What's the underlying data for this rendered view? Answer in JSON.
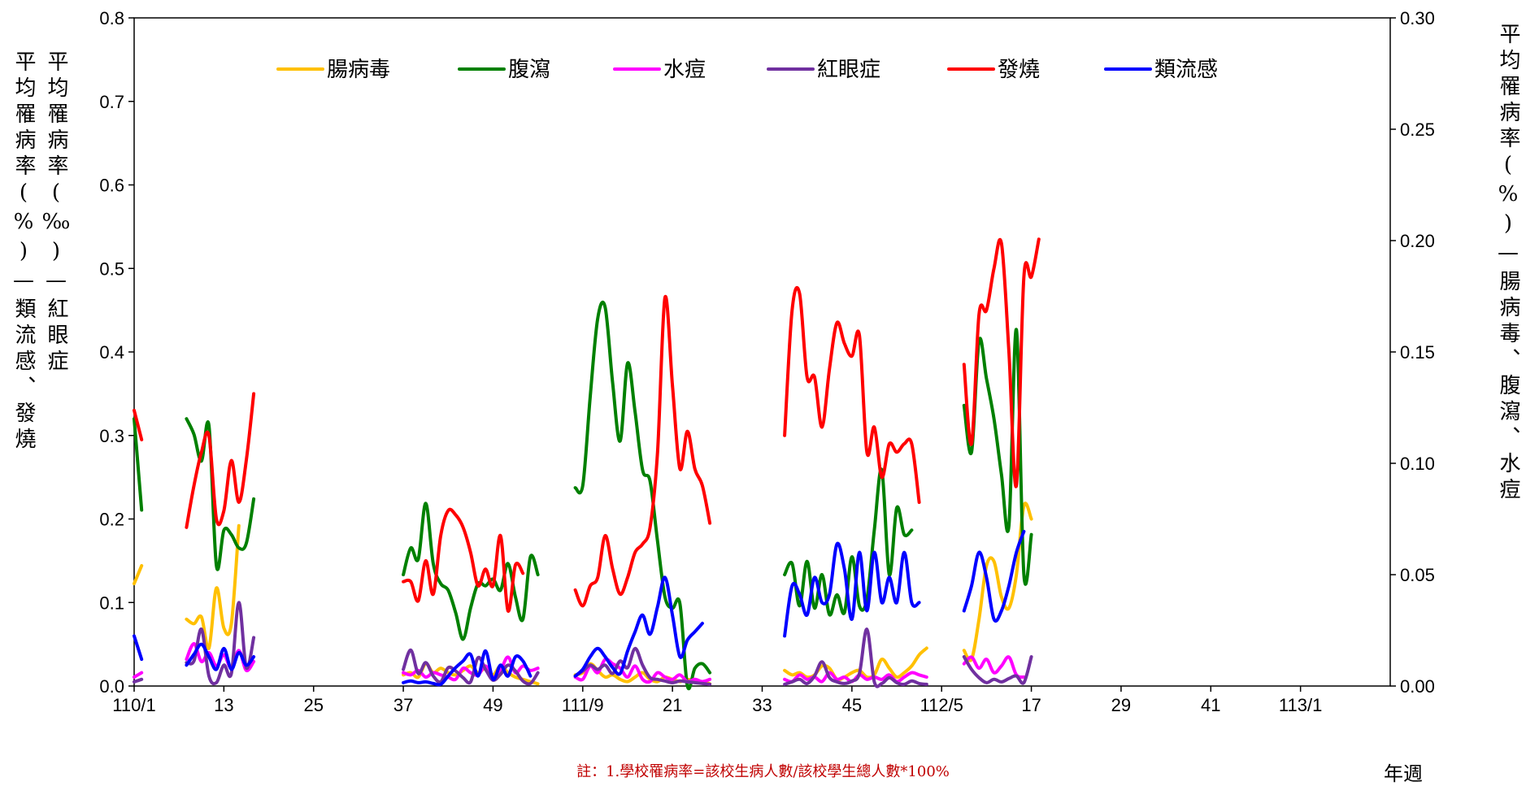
{
  "colors": {
    "腸病毒": "#ffc000",
    "腹瀉": "#008000",
    "水痘": "#ff00ff",
    "紅眼症": "#7030a0",
    "發燒": "#ff0000",
    "類流感": "#0000ff"
  },
  "chart_data": {
    "type": "line",
    "xlabel": "年週",
    "note": "註：1.學校罹病率=該校生病人數/該校學生總人數*100%",
    "left_ylabel_1": "平均罹病率(%)—類流感、發燒",
    "left_ylabel_2": "平均罹病率(‰)—紅眼症",
    "right_ylabel": "平均罹病率(%)—腸病毒、腹瀉、水痘",
    "left_axis": {
      "min": 0,
      "max": 0.8,
      "ticks": [
        "0.0",
        "0.1",
        "0.2",
        "0.3",
        "0.4",
        "0.5",
        "0.6",
        "0.7",
        "0.8"
      ]
    },
    "right_axis": {
      "min": 0,
      "max": 0.3,
      "ticks": [
        "0.00",
        "0.05",
        "0.10",
        "0.15",
        "0.20",
        "0.25",
        "0.30"
      ]
    },
    "x_axis": {
      "min": 0,
      "max": 168,
      "ticks": [
        {
          "pos": 0,
          "label": "110/1"
        },
        {
          "pos": 12,
          "label": "13"
        },
        {
          "pos": 24,
          "label": "25"
        },
        {
          "pos": 36,
          "label": "37"
        },
        {
          "pos": 48,
          "label": "49"
        },
        {
          "pos": 60,
          "label": "111/9"
        },
        {
          "pos": 72,
          "label": "21"
        },
        {
          "pos": 84,
          "label": "33"
        },
        {
          "pos": 96,
          "label": "45"
        },
        {
          "pos": 108,
          "label": "112/5"
        },
        {
          "pos": 120,
          "label": "17"
        },
        {
          "pos": 132,
          "label": "29"
        },
        {
          "pos": 144,
          "label": "41"
        },
        {
          "pos": 156,
          "label": "113/1"
        }
      ]
    },
    "legend": {
      "placement": "top",
      "order": [
        "腸病毒",
        "腹瀉",
        "水痘",
        "紅眼症",
        "發燒",
        "類流感"
      ]
    },
    "series": [
      {
        "name": "腸病毒",
        "axis": "right",
        "segments": [
          {
            "x0": 0,
            "values": [
              0.046,
              0.054
            ]
          },
          {
            "x0": 7,
            "values": [
              0.03,
              0.028,
              0.031,
              0.017,
              0.044,
              0.026,
              0.028,
              0.072
            ]
          },
          {
            "x0": 36,
            "values": [
              0.005,
              0.006,
              0.004,
              0.01,
              0.006,
              0.008,
              0.006,
              0.005,
              0.007,
              0.009,
              0.006,
              0.008,
              0.005,
              0.009,
              0.006,
              0.004,
              0.003,
              0.002,
              0.001
            ]
          },
          {
            "x0": 59,
            "values": [
              0.005,
              0.006,
              0.01,
              0.007,
              0.004,
              0.005,
              0.003,
              0.002,
              0.004,
              0.006,
              0.003,
              0.002,
              0.004,
              0.003,
              0.002,
              0.003,
              0.002,
              0.002,
              0.001
            ]
          },
          {
            "x0": 87,
            "values": [
              0.007,
              0.005,
              0.006,
              0.004,
              0.005,
              0.009,
              0.008,
              0.003,
              0.004,
              0.006,
              0.007,
              0.004,
              0.005,
              0.012,
              0.008,
              0.004,
              0.006,
              0.009,
              0.014,
              0.017
            ]
          },
          {
            "x0": 111,
            "values": [
              0.016,
              0.012,
              0.03,
              0.054,
              0.056,
              0.04,
              0.035,
              0.05,
              0.081,
              0.075
            ]
          }
        ]
      },
      {
        "name": "腹瀉",
        "axis": "right",
        "segments": [
          {
            "x0": 0,
            "values": [
              0.12,
              0.079
            ]
          },
          {
            "x0": 7,
            "values": [
              0.12,
              0.113,
              0.101,
              0.117,
              0.054,
              0.07,
              0.068,
              0.062,
              0.064,
              0.084
            ]
          },
          {
            "x0": 36,
            "values": [
              0.05,
              0.062,
              0.057,
              0.082,
              0.055,
              0.046,
              0.043,
              0.033,
              0.021,
              0.035,
              0.046,
              0.045,
              0.048,
              0.043,
              0.055,
              0.04,
              0.03,
              0.058,
              0.05
            ]
          },
          {
            "x0": 59,
            "values": [
              0.089,
              0.09,
              0.13,
              0.165,
              0.17,
              0.136,
              0.11,
              0.145,
              0.123,
              0.097,
              0.092,
              0.065,
              0.04,
              0.035,
              0.037,
              0,
              0.008,
              0.01,
              0.006
            ]
          },
          {
            "x0": 87,
            "values": [
              0.05,
              0.055,
              0.036,
              0.056,
              0.035,
              0.05,
              0.032,
              0.041,
              0.033,
              0.058,
              0.036,
              0.039,
              0.07,
              0.097,
              0.05,
              0.08,
              0.068,
              0.07
            ]
          },
          {
            "x0": 111,
            "values": [
              0.126,
              0.105,
              0.155,
              0.138,
              0.12,
              0.095,
              0.072,
              0.16,
              0.05,
              0.068
            ]
          }
        ]
      },
      {
        "name": "水痘",
        "axis": "right",
        "segments": [
          {
            "x0": 0,
            "values": [
              0.004,
              0.006
            ]
          },
          {
            "x0": 7,
            "values": [
              0.012,
              0.019,
              0.011,
              0.015,
              0.009,
              0.014,
              0.008,
              0.016,
              0.007,
              0.011
            ]
          },
          {
            "x0": 36,
            "values": [
              0.006,
              0.005,
              0.007,
              0.004,
              0.006,
              0.005,
              0.004,
              0.003,
              0.008,
              0.006,
              0.005,
              0.009,
              0.004,
              0.007,
              0.013,
              0.006,
              0.009,
              0.007,
              0.008
            ]
          },
          {
            "x0": 59,
            "values": [
              0.004,
              0.003,
              0.009,
              0.006,
              0.012,
              0.01,
              0.008,
              0.004,
              0.009,
              0.003,
              0.002,
              0.006,
              0.004,
              0.003,
              0.005,
              0.002,
              0.003,
              0.002,
              0.003
            ]
          },
          {
            "x0": 87,
            "values": [
              0.003,
              0.002,
              0.005,
              0.003,
              0.004,
              0.002,
              0.006,
              0.003,
              0.004,
              0.002,
              0.005,
              0.003,
              0.004,
              0.003,
              0.005,
              0.002,
              0.004,
              0.006,
              0.005,
              0.004
            ]
          },
          {
            "x0": 111,
            "values": [
              0.01,
              0.013,
              0.008,
              0.012,
              0.006,
              0.009,
              0.013,
              0.005,
              0.004
            ]
          }
        ]
      },
      {
        "name": "紅眼症",
        "axis": "left",
        "segments": [
          {
            "x0": 0,
            "values": [
              0.005,
              0.008
            ]
          },
          {
            "x0": 7,
            "values": [
              0.028,
              0.03,
              0.068,
              0.012,
              0.004,
              0.025,
              0.015,
              0.1,
              0.022,
              0.058
            ]
          },
          {
            "x0": 36,
            "values": [
              0.02,
              0.043,
              0.015,
              0.028,
              0.012,
              0.005,
              0.022,
              0.018,
              0.01,
              0.005,
              0.034,
              0.02,
              0.007,
              0.014,
              0.025,
              0.018,
              0.006,
              0.003,
              0.016
            ]
          },
          {
            "x0": 59,
            "values": [
              0.012,
              0.018,
              0.025,
              0.02,
              0.025,
              0.015,
              0.03,
              0.022,
              0.045,
              0.025,
              0.01,
              0.008,
              0.006,
              0.004,
              0.006,
              0.005,
              0.004,
              0.003,
              0.002
            ]
          },
          {
            "x0": 87,
            "values": [
              0.002,
              0.005,
              0.008,
              0.003,
              0.012,
              0.029,
              0.01,
              0.005,
              0.003,
              0.006,
              0.015,
              0.068,
              0.005,
              0.003,
              0.01,
              0.004,
              0.002,
              0.006,
              0.003,
              0.002
            ]
          },
          {
            "x0": 111,
            "values": [
              0.035,
              0.02,
              0.01,
              0.004,
              0.008,
              0.005,
              0.009,
              0.012,
              0.004,
              0.035
            ]
          }
        ]
      },
      {
        "name": "發燒",
        "axis": "left",
        "segments": [
          {
            "x0": 0,
            "values": [
              0.33,
              0.295
            ]
          },
          {
            "x0": 7,
            "values": [
              0.19,
              0.24,
              0.28,
              0.3,
              0.2,
              0.21,
              0.27,
              0.22,
              0.27,
              0.35
            ]
          },
          {
            "x0": 36,
            "values": [
              0.125,
              0.125,
              0.102,
              0.15,
              0.11,
              0.18,
              0.21,
              0.205,
              0.19,
              0.16,
              0.12,
              0.14,
              0.12,
              0.18,
              0.09,
              0.145,
              0.135
            ]
          },
          {
            "x0": 59,
            "values": [
              0.115,
              0.096,
              0.12,
              0.13,
              0.18,
              0.14,
              0.11,
              0.13,
              0.16,
              0.17,
              0.19,
              0.28,
              0.465,
              0.36,
              0.26,
              0.305,
              0.26,
              0.24,
              0.195
            ]
          },
          {
            "x0": 87,
            "values": [
              0.3,
              0.45,
              0.47,
              0.37,
              0.37,
              0.31,
              0.38,
              0.435,
              0.41,
              0.395,
              0.42,
              0.28,
              0.31,
              0.25,
              0.29,
              0.28,
              0.29,
              0.29,
              0.22
            ]
          },
          {
            "x0": 111,
            "values": [
              0.385,
              0.29,
              0.445,
              0.45,
              0.5,
              0.53,
              0.4,
              0.24,
              0.49,
              0.49,
              0.535
            ]
          }
        ]
      },
      {
        "name": "類流感",
        "axis": "left",
        "segments": [
          {
            "x0": 0,
            "values": [
              0.06,
              0.032
            ]
          },
          {
            "x0": 7,
            "values": [
              0.025,
              0.038,
              0.05,
              0.035,
              0.02,
              0.045,
              0.02,
              0.04,
              0.025,
              0.035
            ]
          },
          {
            "x0": 36,
            "values": [
              0.004,
              0.006,
              0.004,
              0.005,
              0.003,
              0.002,
              0.012,
              0.022,
              0.03,
              0.038,
              0.012,
              0.042,
              0.008,
              0.025,
              0.012,
              0.035,
              0.03,
              0.012
            ]
          },
          {
            "x0": 59,
            "values": [
              0.012,
              0.02,
              0.035,
              0.045,
              0.035,
              0.022,
              0.015,
              0.042,
              0.065,
              0.085,
              0.062,
              0.095,
              0.13,
              0.085,
              0.035,
              0.055,
              0.065,
              0.075
            ]
          },
          {
            "x0": 87,
            "values": [
              0.06,
              0.12,
              0.11,
              0.085,
              0.13,
              0.1,
              0.11,
              0.17,
              0.14,
              0.08,
              0.16,
              0.09,
              0.16,
              0.1,
              0.13,
              0.1,
              0.16,
              0.1,
              0.1
            ]
          },
          {
            "x0": 111,
            "values": [
              0.09,
              0.12,
              0.16,
              0.13,
              0.08,
              0.09,
              0.12,
              0.16,
              0.185
            ]
          }
        ]
      }
    ]
  }
}
